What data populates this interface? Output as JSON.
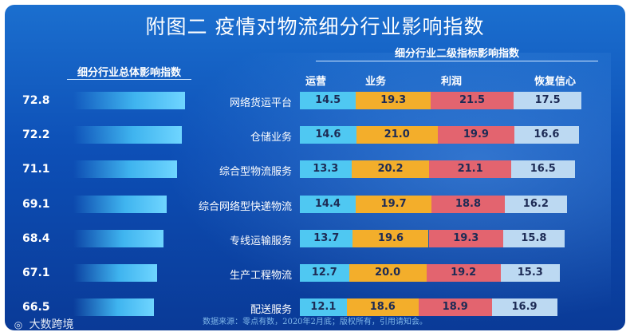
{
  "title": "附图二   疫情对物流细分行业影响指数",
  "left_header": "细分行业总体影响指数",
  "right_header": "细分行业二级指标影响指数",
  "footer": "数据来源：零点有数，2020年2月底；版权所有，引用请知会。",
  "watermark": "大数跨境",
  "colors": {
    "background": "#0d4fb6",
    "total_bar": "#3fb4ef",
    "运营": "#4fc8f2",
    "业务": "#f3ae2b",
    "利润": "#e3646f",
    "恢复信心": "#bcd9f2"
  },
  "chart_data": {
    "type": "bar",
    "categories": [
      "网络货运平台",
      "仓储业务",
      "综合型物流服务",
      "综合网络型快递物流",
      "专线运输服务",
      "生产工程物流",
      "配送服务"
    ],
    "columns": [
      "运营",
      "业务",
      "利润",
      "恢复信心"
    ],
    "series": [
      {
        "name": "细分行业总体影响指数",
        "values": [
          72.8,
          72.2,
          71.1,
          69.1,
          68.4,
          67.1,
          66.5
        ]
      },
      {
        "name": "运营",
        "values": [
          14.5,
          14.6,
          13.3,
          14.4,
          13.7,
          12.7,
          12.1
        ]
      },
      {
        "name": "业务",
        "values": [
          19.3,
          21.0,
          20.2,
          19.7,
          19.6,
          20.0,
          18.6
        ]
      },
      {
        "name": "利润",
        "values": [
          21.5,
          19.9,
          21.1,
          18.8,
          19.3,
          19.2,
          18.9
        ]
      },
      {
        "name": "恢复信心",
        "values": [
          17.5,
          16.6,
          16.5,
          16.2,
          15.8,
          15.3,
          16.9
        ]
      }
    ],
    "value_labels": {
      "total": [
        "72.8",
        "72.2",
        "71.1",
        "69.1",
        "68.4",
        "67.1",
        "66.5"
      ],
      "运营": [
        "14.5",
        "14.6",
        "13.3",
        "14.4",
        "13.7",
        "12.7",
        "12.1"
      ],
      "业务": [
        "19.3",
        "21.0",
        "20.2",
        "19.7",
        "19.6",
        "20.0",
        "18.6"
      ],
      "利润": [
        "21.5",
        "19.9",
        "21.1",
        "18.8",
        "19.3",
        "19.2",
        "18.9"
      ],
      "恢复信心": [
        "17.5",
        "16.6",
        "16.5",
        "16.2",
        "15.8",
        "15.3",
        "16.9"
      ]
    }
  }
}
